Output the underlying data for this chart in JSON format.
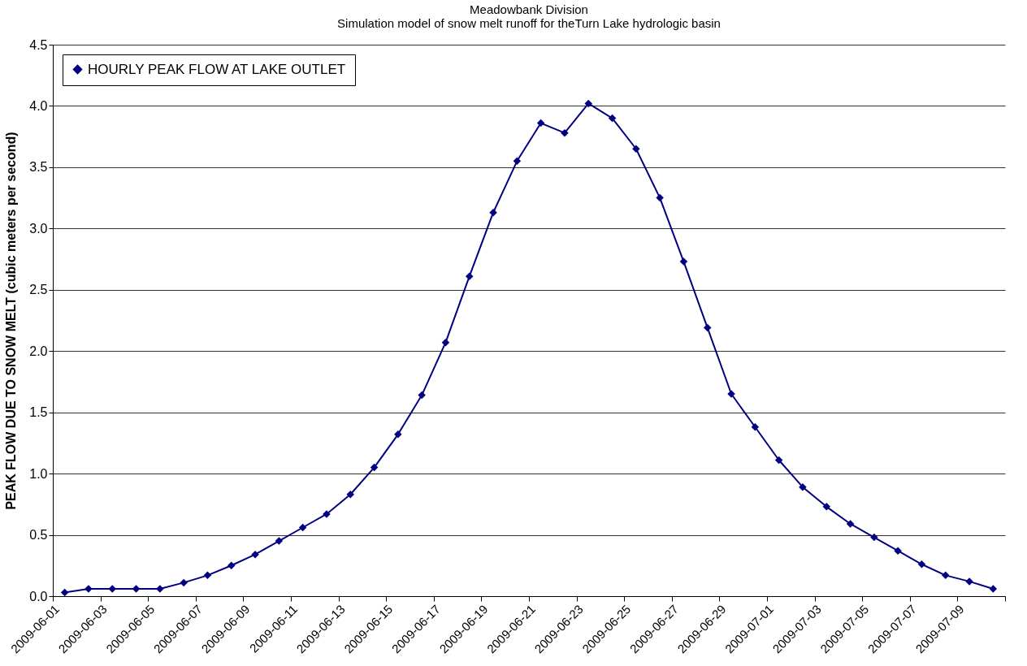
{
  "chart_data": {
    "type": "line",
    "title": "Meadowbank Division",
    "subtitle": "Simulation model of snow melt runoff for theTurn Lake hydrologic basin",
    "ylabel": "PEAK FLOW DUE TO SNOW MELT (cubic meters per second)",
    "x": [
      "2009-06-01T12:00",
      "2009-06-02T12:00",
      "2009-06-03T12:00",
      "2009-06-04T12:00",
      "2009-06-05T12:00",
      "2009-06-06T12:00",
      "2009-06-07T12:00",
      "2009-06-08T12:00",
      "2009-06-09T12:00",
      "2009-06-10T12:00",
      "2009-06-11T12:00",
      "2009-06-12T12:00",
      "2009-06-13T12:00",
      "2009-06-14T12:00",
      "2009-06-15T12:00",
      "2009-06-16T12:00",
      "2009-06-17T12:00",
      "2009-06-18T12:00",
      "2009-06-19T12:00",
      "2009-06-20T12:00",
      "2009-06-21T12:00",
      "2009-06-22T12:00",
      "2009-06-23T12:00",
      "2009-06-24T12:00",
      "2009-06-25T12:00",
      "2009-06-26T12:00",
      "2009-06-27T12:00",
      "2009-06-28T12:00",
      "2009-06-29T12:00",
      "2009-06-30T12:00",
      "2009-07-01T12:00",
      "2009-07-02T12:00",
      "2009-07-03T12:00",
      "2009-07-04T12:00",
      "2009-07-05T12:00",
      "2009-07-06T12:00",
      "2009-07-07T12:00",
      "2009-07-08T12:00",
      "2009-07-09T12:00",
      "2009-07-10T12:00"
    ],
    "series": [
      {
        "name": "HOURLY PEAK FLOW AT LAKE OUTLET",
        "color": "#000080",
        "values": [
          0.03,
          0.06,
          0.06,
          0.06,
          0.06,
          0.11,
          0.17,
          0.25,
          0.34,
          0.45,
          0.56,
          0.67,
          0.83,
          1.05,
          1.32,
          1.64,
          2.07,
          2.61,
          3.13,
          3.55,
          3.86,
          3.78,
          4.02,
          3.9,
          3.65,
          3.25,
          2.73,
          2.19,
          1.65,
          1.38,
          1.11,
          0.89,
          0.73,
          0.59,
          0.48,
          0.37,
          0.26,
          0.17,
          0.12,
          0.06
        ]
      }
    ],
    "xlim": [
      "2009-06-01",
      "2009-07-11"
    ],
    "xticks": [
      "2009-06-01",
      "2009-06-03",
      "2009-06-05",
      "2009-06-07",
      "2009-06-09",
      "2009-06-11",
      "2009-06-13",
      "2009-06-15",
      "2009-06-17",
      "2009-06-19",
      "2009-06-21",
      "2009-06-23",
      "2009-06-25",
      "2009-06-27",
      "2009-06-29",
      "2009-07-01",
      "2009-07-03",
      "2009-07-05",
      "2009-07-07",
      "2009-07-09",
      {
        "value": "2009-07-11",
        "label": null
      }
    ],
    "ylim": [
      0,
      4.5
    ],
    "yticks": [
      {
        "value": 0,
        "label": "0.0"
      },
      0.5,
      {
        "value": 1,
        "label": "1.0"
      },
      1.5,
      {
        "value": 2,
        "label": "2.0"
      },
      2.5,
      {
        "value": 3,
        "label": "3.0"
      },
      3.5,
      {
        "value": 4,
        "label": "4.0"
      },
      4.5
    ],
    "grid": "y",
    "legend": "top left",
    "marker": "diamond",
    "line_style": "solid"
  }
}
